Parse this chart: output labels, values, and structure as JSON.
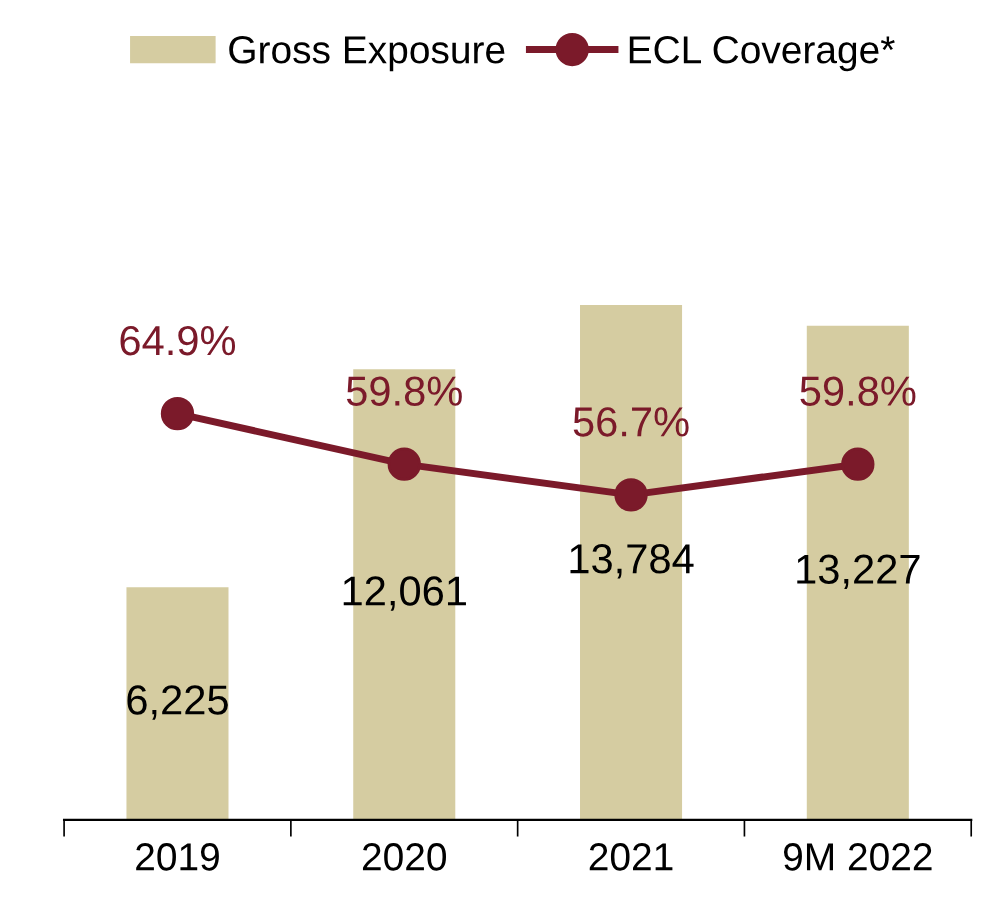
{
  "chart_data": {
    "type": "bar",
    "categories": [
      "2019",
      "2020",
      "2021",
      "9M 2022"
    ],
    "series": [
      {
        "name": "Gross Exposure",
        "color": "#d5cca1",
        "values": [
          6225,
          12061,
          13784,
          13227
        ],
        "value_labels": [
          "6,225",
          "12,061",
          "13,784",
          "13,227"
        ]
      },
      {
        "name": "ECL Coverage*",
        "type": "line",
        "axis": "y2",
        "color": "#7b1a2a",
        "values": [
          64.9,
          59.8,
          56.7,
          59.8
        ],
        "value_labels": [
          "64.9%",
          "59.8%",
          "56.7%",
          "59.8%"
        ]
      }
    ],
    "tick_labels": "x",
    "marker": "circle",
    "line_style": "solid",
    "legend": "top",
    "grid": false
  }
}
